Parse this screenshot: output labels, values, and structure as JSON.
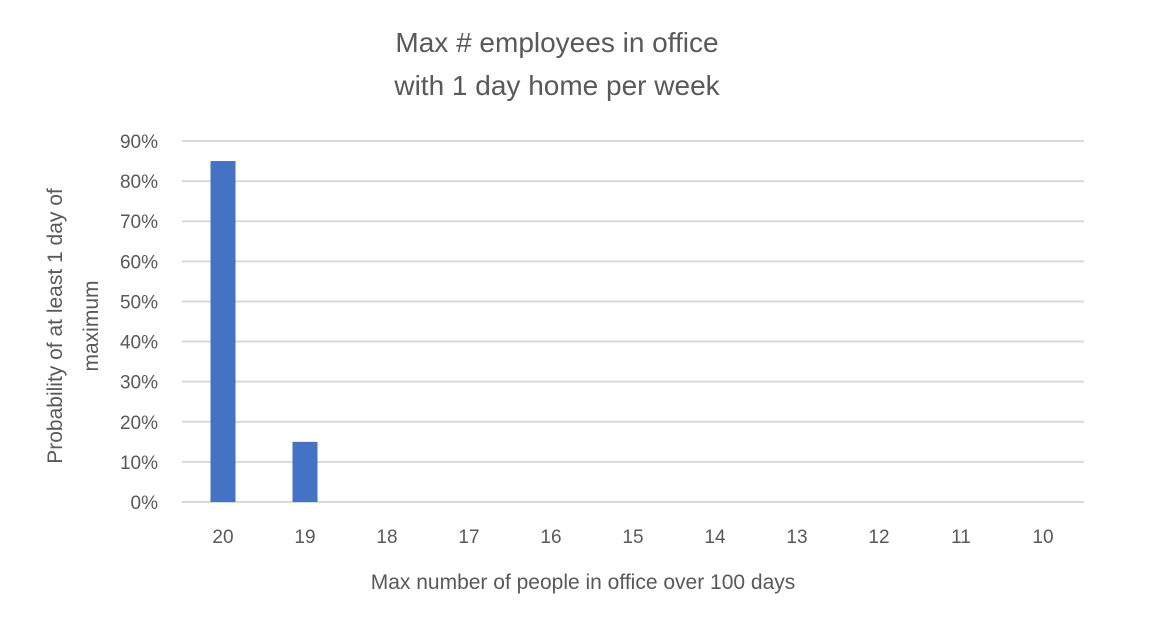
{
  "chart_data": {
    "type": "bar",
    "title": [
      "Max # employees in office",
      "with 1 day home per week"
    ],
    "xlabel": "Max number of people in office over 100 days",
    "ylabel": [
      "Probability of at least 1 day of",
      "maximum"
    ],
    "categories": [
      "20",
      "19",
      "18",
      "17",
      "16",
      "15",
      "14",
      "13",
      "12",
      "11",
      "10"
    ],
    "values": [
      0.85,
      0.15,
      0,
      0,
      0,
      0,
      0,
      0,
      0,
      0,
      0
    ],
    "ylim": [
      0,
      0.9
    ],
    "yticks": [
      "0%",
      "10%",
      "20%",
      "30%",
      "40%",
      "50%",
      "60%",
      "70%",
      "80%",
      "90%"
    ],
    "grid": true,
    "legend": "none",
    "colors": {
      "bar": "#4472C4",
      "grid": "#D9D9D9",
      "text": "#595959"
    }
  }
}
